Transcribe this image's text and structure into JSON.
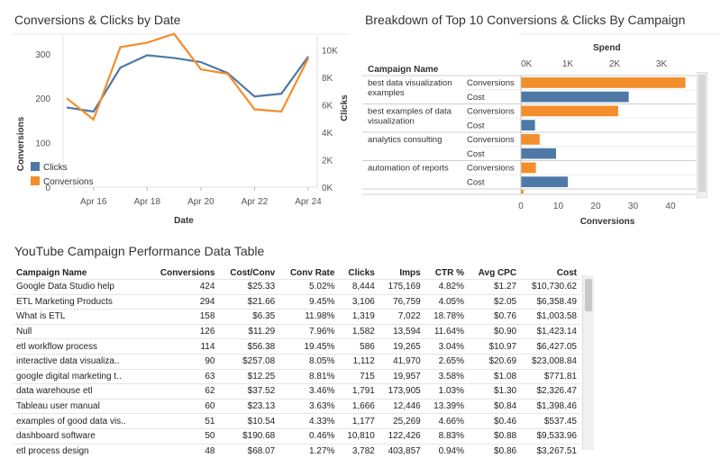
{
  "line_chart": {
    "title": "Conversions & Clicks by Date",
    "ylabel_left": "Conversions",
    "ylabel_right": "Clicks",
    "xlabel": "Date",
    "left_ticks": [
      "0",
      "100",
      "200",
      "300"
    ],
    "right_ticks": [
      "0K",
      "2K",
      "4K",
      "6K",
      "8K",
      "10K"
    ],
    "x_ticks": [
      "Apr 16",
      "Apr 18",
      "Apr 20",
      "Apr 22",
      "Apr 24"
    ],
    "legend": [
      {
        "label": "Clicks",
        "color": "#4e79a7"
      },
      {
        "label": "Conversions",
        "color": "#f28e2b"
      }
    ]
  },
  "breakdown_chart": {
    "title": "Breakdown of Top 10 Conversions & Clicks By Campaign",
    "column_header": "Campaign Name",
    "top_axis_title": "Spend",
    "top_ticks": [
      "0K",
      "1K",
      "2K",
      "3K"
    ],
    "bottom_axis_title": "Conversions",
    "bottom_ticks": [
      "0",
      "10",
      "20",
      "30",
      "40"
    ],
    "measure_conversions": "Conversions",
    "measure_cost": "Cost",
    "campaign_lines": [
      [
        "best data visualization",
        "examples"
      ],
      [
        "best examples of data",
        "visualization"
      ],
      [
        "analytics consulting"
      ],
      [
        "automation of reports"
      ]
    ]
  },
  "table": {
    "title": "YouTube Campaign Performance Data Table",
    "columns": [
      "Campaign Name",
      "Conversions",
      "Cost/Conv",
      "Conv Rate",
      "Clicks",
      "Imps",
      "CTR %",
      "Avg CPC",
      "Cost"
    ],
    "rows": [
      [
        "Google Data Studio help",
        "424",
        "$25.33",
        "5.02%",
        "8,444",
        "175,169",
        "4.82%",
        "$1.27",
        "$10,730.62"
      ],
      [
        "ETL Marketing Products",
        "294",
        "$21.66",
        "9.45%",
        "3,106",
        "76,759",
        "4.05%",
        "$2.05",
        "$6,358.49"
      ],
      [
        "What is ETL",
        "158",
        "$6.35",
        "11.98%",
        "1,319",
        "7,022",
        "18.78%",
        "$0.76",
        "$1,003.58"
      ],
      [
        "Null",
        "126",
        "$11.29",
        "7.96%",
        "1,582",
        "13,594",
        "11.64%",
        "$0.90",
        "$1,423.14"
      ],
      [
        "etl workflow process",
        "114",
        "$56.38",
        "19.45%",
        "586",
        "19,265",
        "3.04%",
        "$10.97",
        "$6,427.05"
      ],
      [
        "interactive data visualiza..",
        "90",
        "$257.08",
        "8.05%",
        "1,112",
        "41,970",
        "2.65%",
        "$20.69",
        "$23,008.84"
      ],
      [
        "google digital marketing t..",
        "63",
        "$12.25",
        "8.81%",
        "715",
        "19,957",
        "3.58%",
        "$1.08",
        "$771.81"
      ],
      [
        "data warehouse etl",
        "62",
        "$37.52",
        "3.46%",
        "1,791",
        "173,905",
        "1.03%",
        "$1.30",
        "$2,326.47"
      ],
      [
        "Tableau user manual",
        "60",
        "$23.13",
        "3.63%",
        "1,666",
        "12,446",
        "13.39%",
        "$0.84",
        "$1,398.46"
      ],
      [
        "examples of good data vis..",
        "51",
        "$10.54",
        "4.33%",
        "1,177",
        "25,269",
        "4.66%",
        "$0.46",
        "$537.45"
      ],
      [
        "dashboard software",
        "50",
        "$190.68",
        "0.46%",
        "10,810",
        "122,426",
        "8.83%",
        "$0.88",
        "$9,533.96"
      ],
      [
        "etl process design",
        "48",
        "$68.07",
        "1.27%",
        "3,782",
        "403,857",
        "0.94%",
        "$0.86",
        "$3,267.51"
      ]
    ]
  },
  "chart_data": [
    {
      "type": "line",
      "title": "Conversions & Clicks by Date",
      "xlabel": "Date",
      "ylabel": "Conversions",
      "ylabel_right": "Clicks",
      "x": [
        "Apr 15",
        "Apr 16",
        "Apr 17",
        "Apr 18",
        "Apr 19",
        "Apr 20",
        "Apr 21",
        "Apr 22",
        "Apr 23",
        "Apr 24"
      ],
      "x_tick_labels": [
        "Apr 16",
        "Apr 18",
        "Apr 20",
        "Apr 22",
        "Apr 24"
      ],
      "ylim": [
        0,
        340
      ],
      "ylim_right": [
        0,
        11000
      ],
      "series": [
        {
          "name": "Clicks",
          "axis": "right",
          "color": "#4e79a7",
          "values": [
            5800,
            5500,
            8700,
            9600,
            9400,
            9100,
            8300,
            6600,
            6800,
            9500
          ]
        },
        {
          "name": "Conversions",
          "axis": "left",
          "color": "#f28e2b",
          "values": [
            200,
            152,
            315,
            325,
            345,
            265,
            255,
            175,
            170,
            290
          ]
        }
      ]
    },
    {
      "type": "bar",
      "title": "Breakdown of Top 10 Conversions & Clicks By Campaign",
      "categories": [
        "best data visualization examples",
        "best examples of data visualization",
        "analytics consulting",
        "automation of reports"
      ],
      "series": [
        {
          "name": "Conversions",
          "color": "#f28e2b",
          "values": [
            44,
            26,
            5,
            4
          ]
        },
        {
          "name": "Cost",
          "color": "#4e79a7",
          "values": [
            2.3,
            0.3,
            0.75,
            1.0
          ],
          "unit": "K"
        }
      ],
      "xlim_conversions": [
        0,
        47
      ],
      "xlim_spend_k": [
        0,
        3.75
      ]
    }
  ]
}
